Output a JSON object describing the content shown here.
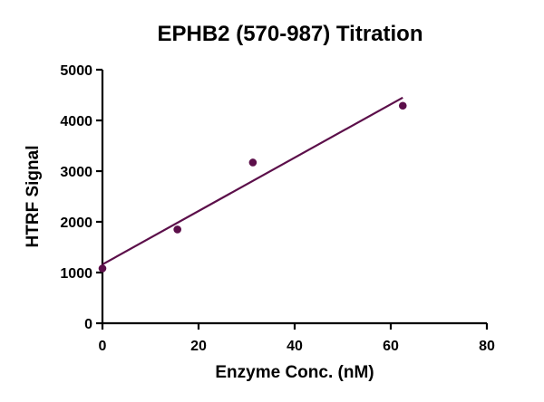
{
  "chart_data": {
    "type": "scatter",
    "title": "EPHB2 (570-987) Titration",
    "xlabel": "Enzyme Conc. (nM)",
    "ylabel": "HTRF Signal",
    "xlim": [
      0,
      80
    ],
    "ylim": [
      0,
      5000
    ],
    "x_ticks": [
      0,
      20,
      40,
      60,
      80
    ],
    "y_ticks": [
      0,
      1000,
      2000,
      3000,
      4000,
      5000
    ],
    "grid": false,
    "legend": "none",
    "series": [
      {
        "x": [
          0,
          15.6,
          31.3,
          62.5
        ],
        "y": [
          1080,
          1850,
          3170,
          4290
        ],
        "color": "#5c0f4a"
      }
    ],
    "fit_line": {
      "type": "linear",
      "x_range": [
        0,
        62.5
      ],
      "y_range": [
        1160,
        4450
      ],
      "color": "#5c0f4a"
    }
  }
}
